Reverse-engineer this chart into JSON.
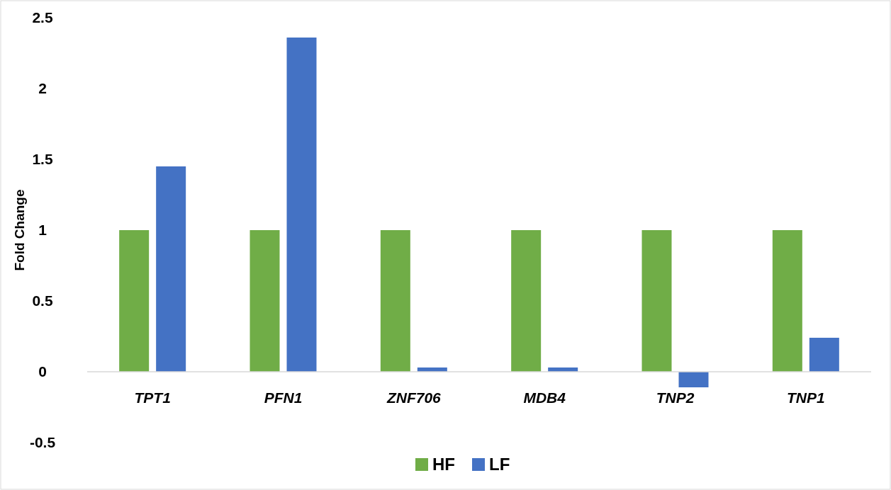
{
  "chart_data": {
    "type": "bar",
    "ylabel": "Fold Change",
    "categories": [
      "TPT1",
      "PFN1",
      "ZNF706",
      "MDB4",
      "TNP2",
      "TNP1"
    ],
    "series": [
      {
        "name": "HF",
        "color": "#70ad47",
        "values": [
          1,
          1,
          1,
          1,
          1,
          1
        ]
      },
      {
        "name": "LF",
        "color": "#4472c4",
        "values": [
          1.45,
          2.36,
          0.03,
          0.03,
          -0.11,
          0.24
        ]
      }
    ],
    "ylim": [
      -0.5,
      2.5
    ],
    "yticks": [
      -0.5,
      0,
      0.5,
      1,
      1.5,
      2,
      2.5
    ],
    "grid": false,
    "legend": "bottom"
  }
}
